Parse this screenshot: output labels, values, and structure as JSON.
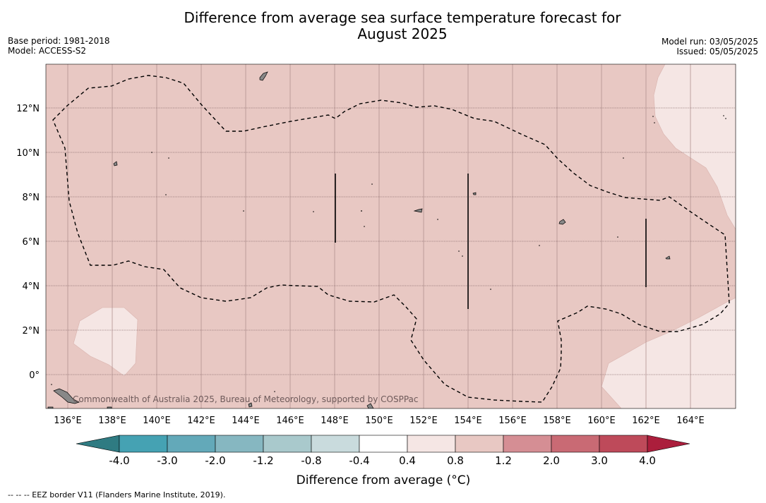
{
  "header": {
    "title_line1": "Difference from average sea surface temperature forecast for",
    "title_line2": "August 2025",
    "base_period": "Base period: 1981-2018",
    "model": "Model: ACCESS-S2",
    "model_run": "Model run: 03/05/2025",
    "issued": "Issued: 05/05/2025"
  },
  "map": {
    "lon_ticks": [
      "136°E",
      "138°E",
      "140°E",
      "142°E",
      "144°E",
      "146°E",
      "148°E",
      "150°E",
      "152°E",
      "154°E",
      "156°E",
      "158°E",
      "160°E",
      "162°E",
      "164°E"
    ],
    "lat_ticks": [
      "12°N",
      "10°N",
      "8°N",
      "6°N",
      "4°N",
      "2°N",
      "0°"
    ],
    "copyright": "Commonwealth of Australia 2025, Bureau of Meteorology, supported by COSPPac",
    "colors": {
      "background_anomaly": "#e8c8c3",
      "light_anomaly": "#f5e6e4",
      "land": "#888888",
      "eez_line": "#000000"
    }
  },
  "colorbar": {
    "title": "Difference from average (°C)",
    "labels": [
      "-4.0",
      "-3.0",
      "-2.0",
      "-1.2",
      "-0.8",
      "-0.4",
      "0.4",
      "0.8",
      "1.2",
      "2.0",
      "3.0",
      "4.0"
    ],
    "colors": [
      "#2f7b82",
      "#45a2b3",
      "#63a9b9",
      "#86b7c1",
      "#a9c9cc",
      "#c9dbdd",
      "#ffffff",
      "#f5e6e4",
      "#e8c8c3",
      "#d58e94",
      "#c96a74",
      "#be4a5a",
      "#ab1e3c"
    ]
  },
  "footnote": "--  --  -- EEZ border V11 (Flanders Marine Institute, 2019)."
}
